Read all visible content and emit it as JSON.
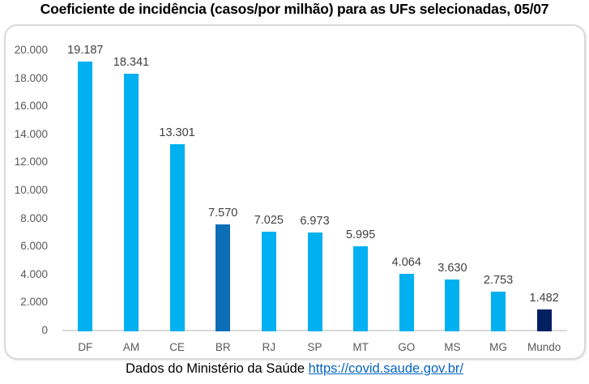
{
  "title": "Coeficiente de incidência (casos/por milhão) para as UFs selecionadas, 05/07",
  "footer": {
    "source_text": "Dados do Ministério da Saúde ",
    "link_text": "https://covid.saude.gov.br/",
    "link_color": "#0563C1"
  },
  "colors": {
    "bar_default": "#00B0F0",
    "bar_br": "#0D6EB8",
    "bar_mundo": "#002060",
    "axis_line": "#D9D9D9",
    "axis_text": "#595959",
    "data_label_text": "#404040",
    "frame_border": "#D9D9D9",
    "title_text": "#000000"
  },
  "chart_data": {
    "type": "bar",
    "title": "Coeficiente de incidência (casos/por milhão) para as UFs selecionadas, 05/07",
    "categories": [
      "DF",
      "AM",
      "CE",
      "BR",
      "RJ",
      "SP",
      "MT",
      "GO",
      "MS",
      "MG",
      "Mundo"
    ],
    "values": [
      19187,
      18341,
      13301,
      7570,
      7025,
      6973,
      5995,
      4064,
      3630,
      2753,
      1482
    ],
    "data_labels": [
      "19.187",
      "18.341",
      "13.301",
      "7.570",
      "7.025",
      "6.973",
      "5.995",
      "4.064",
      "3.630",
      "2.753",
      "1.482"
    ],
    "bar_colors": [
      "#00B0F0",
      "#00B0F0",
      "#00B0F0",
      "#0D6EB8",
      "#00B0F0",
      "#00B0F0",
      "#00B0F0",
      "#00B0F0",
      "#00B0F0",
      "#00B0F0",
      "#002060"
    ],
    "y_tick_labels": [
      "20.000",
      "18.000",
      "16.000",
      "14.000",
      "12.000",
      "10.000",
      "8.000",
      "6.000",
      "4.000",
      "2.000",
      "0"
    ],
    "y_tick_values": [
      20000,
      18000,
      16000,
      14000,
      12000,
      10000,
      8000,
      6000,
      4000,
      2000,
      0
    ],
    "xlabel": "",
    "ylabel": "",
    "ylim": [
      0,
      20000
    ],
    "grid": false,
    "legend": null,
    "source_note": "Dados do Ministério da Saúde https://covid.saude.gov.br/"
  }
}
